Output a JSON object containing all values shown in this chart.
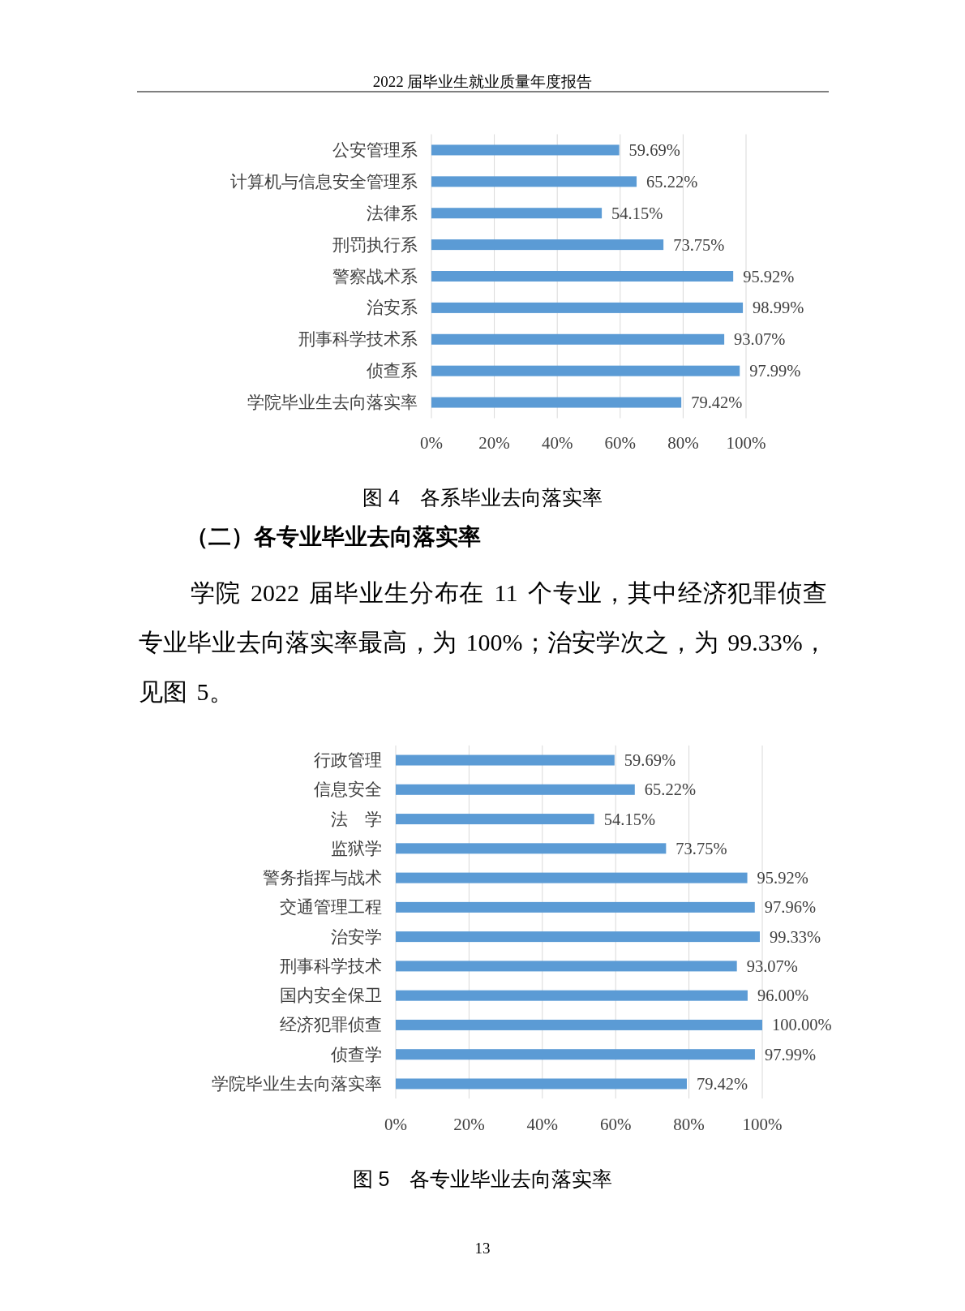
{
  "chart_data": [
    {
      "type": "bar",
      "orientation": "horizontal",
      "title": "图 4　各系毕业去向落实率",
      "annotations": [
        "2022 届毕业生就业质量年度报告"
      ],
      "categories": [
        "公安管理系",
        "计算机与信息安全管理系",
        "法律系",
        "刑罚执行系",
        "警察战术系",
        "治安系",
        "刑事科学技术系",
        "侦查系",
        "学院毕业生去向落实率"
      ],
      "values": [
        59.69,
        65.22,
        54.15,
        73.75,
        95.92,
        98.99,
        93.07,
        97.99,
        79.42
      ],
      "value_labels": [
        "59.69%",
        "65.22%",
        "54.15%",
        "73.75%",
        "95.92%",
        "98.99%",
        "93.07%",
        "97.99%",
        "79.42%"
      ],
      "color": "#5b9bd5",
      "xlim": [
        0,
        100
      ],
      "xticks": [
        {
          "value": 0,
          "label": "0%"
        },
        {
          "value": 20,
          "label": "20%"
        },
        {
          "value": 40,
          "label": "40%"
        },
        {
          "value": 60,
          "label": "60%"
        },
        {
          "value": 80,
          "label": "80%"
        },
        {
          "value": 100,
          "label": "100%"
        }
      ],
      "grid": "x"
    },
    {
      "type": "other",
      "title": "（二）各专业毕业去向落实率",
      "annotations": [
        "学院 2022 届毕业生分布在 11 个专业，其中经济犯罪侦查专业毕业去向落实率最高，为 100%；治安学次之，为 99.33%，见图 5。"
      ]
    },
    {
      "type": "bar",
      "orientation": "horizontal",
      "title": "图 5　各专业毕业去向落实率",
      "annotations": [
        "13"
      ],
      "categories": [
        "行政管理",
        "信息安全",
        "法　学",
        "监狱学",
        "警务指挥与战术",
        "交通管理工程",
        "治安学",
        "刑事科学技术",
        "国内安全保卫",
        "经济犯罪侦查",
        "侦查学",
        "学院毕业生去向落实率"
      ],
      "values": [
        59.69,
        65.22,
        54.15,
        73.75,
        95.92,
        97.96,
        99.33,
        93.07,
        96.0,
        100.0,
        97.99,
        79.42
      ],
      "value_labels": [
        "59.69%",
        "65.22%",
        "54.15%",
        "73.75%",
        "95.92%",
        "97.96%",
        "99.33%",
        "93.07%",
        "96.00%",
        "100.00%",
        "97.99%",
        "79.42%"
      ],
      "color": "#5b9bd5",
      "xlim": [
        0,
        100
      ],
      "xticks": [
        {
          "value": 0,
          "label": "0%"
        },
        {
          "value": 20,
          "label": "20%"
        },
        {
          "value": 40,
          "label": "40%"
        },
        {
          "value": 60,
          "label": "60%"
        },
        {
          "value": 80,
          "label": "80%"
        },
        {
          "value": 100,
          "label": "100%"
        }
      ],
      "grid": "x"
    }
  ]
}
